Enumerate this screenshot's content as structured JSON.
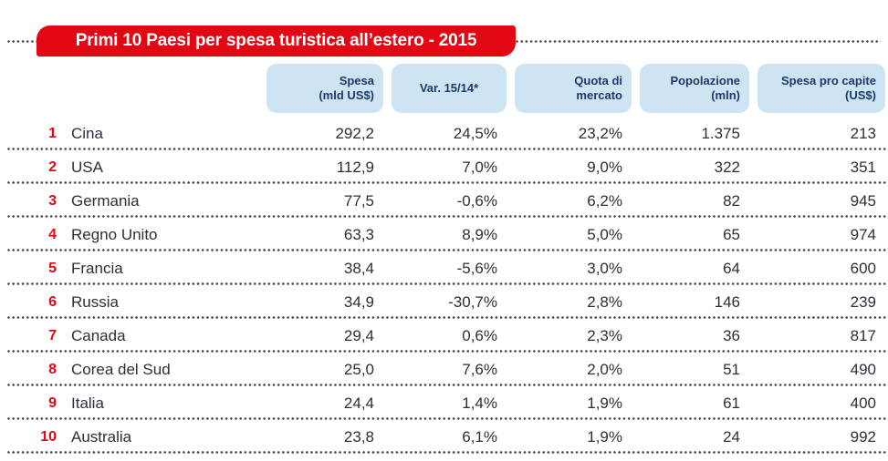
{
  "title": "Primi 10 Paesi per spesa turistica all’estero - 2015",
  "colors": {
    "banner_red": "#e30613",
    "header_box_blue": "#cde4f3",
    "header_text_navy": "#1b3a6b",
    "body_text": "#2c2f38",
    "rank_red": "#e30613",
    "dot_gray": "#4b4b4b"
  },
  "table": {
    "columns": [
      {
        "line1": "Spesa",
        "line2": "(mld US$)"
      },
      {
        "line1": "Var. 15/14*",
        "line2": ""
      },
      {
        "line1": "Quota di",
        "line2": "mercato"
      },
      {
        "line1": "Popolazione",
        "line2": "(mln)"
      },
      {
        "line1": "Spesa pro capite",
        "line2": "(US$)"
      }
    ],
    "rows": [
      {
        "rank": "1",
        "country": "Cina",
        "spesa": "292,2",
        "var": "24,5%",
        "quota": "23,2%",
        "popolazione": "1.375",
        "pro_capite": "213"
      },
      {
        "rank": "2",
        "country": "USA",
        "spesa": "112,9",
        "var": "7,0%",
        "quota": "9,0%",
        "popolazione": "322",
        "pro_capite": "351"
      },
      {
        "rank": "3",
        "country": "Germania",
        "spesa": "77,5",
        "var": "-0,6%",
        "quota": "6,2%",
        "popolazione": "82",
        "pro_capite": "945"
      },
      {
        "rank": "4",
        "country": "Regno Unito",
        "spesa": "63,3",
        "var": "8,9%",
        "quota": "5,0%",
        "popolazione": "65",
        "pro_capite": "974"
      },
      {
        "rank": "5",
        "country": "Francia",
        "spesa": "38,4",
        "var": "-5,6%",
        "quota": "3,0%",
        "popolazione": "64",
        "pro_capite": "600"
      },
      {
        "rank": "6",
        "country": "Russia",
        "spesa": "34,9",
        "var": "-30,7%",
        "quota": "2,8%",
        "popolazione": "146",
        "pro_capite": "239"
      },
      {
        "rank": "7",
        "country": "Canada",
        "spesa": "29,4",
        "var": "0,6%",
        "quota": "2,3%",
        "popolazione": "36",
        "pro_capite": "817"
      },
      {
        "rank": "8",
        "country": "Corea del Sud",
        "spesa": "25,0",
        "var": "7,6%",
        "quota": "2,0%",
        "popolazione": "51",
        "pro_capite": "490"
      },
      {
        "rank": "9",
        "country": "Italia",
        "spesa": "24,4",
        "var": "1,4%",
        "quota": "1,9%",
        "popolazione": "61",
        "pro_capite": "400"
      },
      {
        "rank": "10",
        "country": "Australia",
        "spesa": "23,8",
        "var": "6,1%",
        "quota": "1,9%",
        "popolazione": "24",
        "pro_capite": "992"
      }
    ]
  },
  "chart_data": {
    "type": "table",
    "title": "Primi 10 Paesi per spesa turistica all’estero - 2015",
    "column_headers": [
      "Spesa (mld US$)",
      "Var. 15/14*",
      "Quota di mercato",
      "Popolazione (mln)",
      "Spesa pro capite (US$)"
    ],
    "rows": [
      {
        "rank": 1,
        "country": "Cina",
        "spesa_mld_usd": 292.2,
        "var_15_14_pct": 24.5,
        "quota_mercato_pct": 23.2,
        "popolazione_mln": 1375,
        "spesa_pro_capite_usd": 213
      },
      {
        "rank": 2,
        "country": "USA",
        "spesa_mld_usd": 112.9,
        "var_15_14_pct": 7.0,
        "quota_mercato_pct": 9.0,
        "popolazione_mln": 322,
        "spesa_pro_capite_usd": 351
      },
      {
        "rank": 3,
        "country": "Germania",
        "spesa_mld_usd": 77.5,
        "var_15_14_pct": -0.6,
        "quota_mercato_pct": 6.2,
        "popolazione_mln": 82,
        "spesa_pro_capite_usd": 945
      },
      {
        "rank": 4,
        "country": "Regno Unito",
        "spesa_mld_usd": 63.3,
        "var_15_14_pct": 8.9,
        "quota_mercato_pct": 5.0,
        "popolazione_mln": 65,
        "spesa_pro_capite_usd": 974
      },
      {
        "rank": 5,
        "country": "Francia",
        "spesa_mld_usd": 38.4,
        "var_15_14_pct": -5.6,
        "quota_mercato_pct": 3.0,
        "popolazione_mln": 64,
        "spesa_pro_capite_usd": 600
      },
      {
        "rank": 6,
        "country": "Russia",
        "spesa_mld_usd": 34.9,
        "var_15_14_pct": -30.7,
        "quota_mercato_pct": 2.8,
        "popolazione_mln": 146,
        "spesa_pro_capite_usd": 239
      },
      {
        "rank": 7,
        "country": "Canada",
        "spesa_mld_usd": 29.4,
        "var_15_14_pct": 0.6,
        "quota_mercato_pct": 2.3,
        "popolazione_mln": 36,
        "spesa_pro_capite_usd": 817
      },
      {
        "rank": 8,
        "country": "Corea del Sud",
        "spesa_mld_usd": 25.0,
        "var_15_14_pct": 7.6,
        "quota_mercato_pct": 2.0,
        "popolazione_mln": 51,
        "spesa_pro_capite_usd": 490
      },
      {
        "rank": 9,
        "country": "Italia",
        "spesa_mld_usd": 24.4,
        "var_15_14_pct": 1.4,
        "quota_mercato_pct": 1.9,
        "popolazione_mln": 61,
        "spesa_pro_capite_usd": 400
      },
      {
        "rank": 10,
        "country": "Australia",
        "spesa_mld_usd": 23.8,
        "var_15_14_pct": 6.1,
        "quota_mercato_pct": 1.9,
        "popolazione_mln": 24,
        "spesa_pro_capite_usd": 992
      }
    ]
  }
}
